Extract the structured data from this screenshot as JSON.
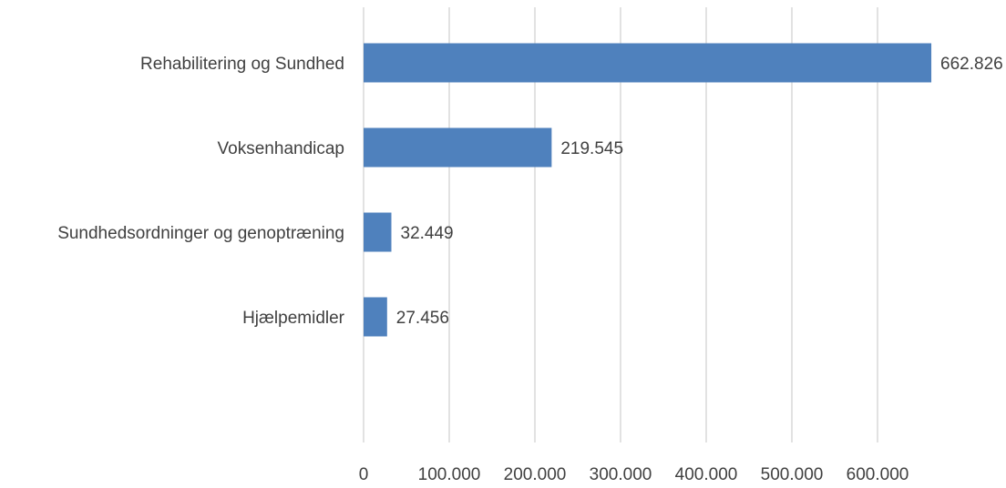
{
  "chart_data": {
    "type": "bar",
    "orientation": "horizontal",
    "categories": [
      "Rehabilitering og Sundhed",
      "Voksenhandicap",
      "Sundhedsordninger og genoptræning",
      "Hjælpemidler"
    ],
    "values": [
      662826,
      219545,
      32449,
      27456
    ],
    "data_labels": [
      "662.826",
      "219.545",
      "32.449",
      "27.456"
    ],
    "x_ticks": [
      0,
      100000,
      200000,
      300000,
      400000,
      500000,
      600000
    ],
    "x_tick_labels": [
      "0",
      "100.000",
      "200.000",
      "300.000",
      "400.000",
      "500.000",
      "600.000"
    ],
    "xlim": [
      0,
      700000
    ],
    "grid": true,
    "legend": "none",
    "colors": {
      "bar": "#4f81bd",
      "grid": "#d9d9d9",
      "text": "#404040"
    }
  }
}
